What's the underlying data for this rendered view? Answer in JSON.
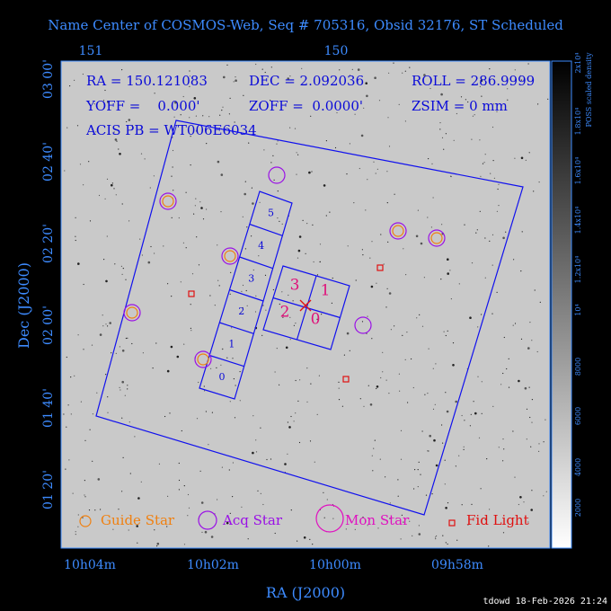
{
  "title": "Name Center of COSMOS-Web, Seq # 705316, Obsid 32176, ST Scheduled",
  "axes": {
    "top_ticks": [
      "151",
      "150"
    ],
    "left_ticks": [
      "03 00'",
      "02 40'",
      "02 20'",
      "02 00'",
      "01 40'",
      "01 20'"
    ],
    "bottom_ticks": [
      "10h04m",
      "10h02m",
      "10h00m",
      "09h58m"
    ],
    "x_label": "RA (J2000)",
    "y_label": "Dec (J2000)"
  },
  "info": [
    "RA = 150.121083",
    "DEC = 2.092036",
    "ROLL = 286.9999",
    "YOFF =    0.000'",
    "ZOFF =  0.0000'",
    "ZSIM = 0 mm",
    "ACIS PB = WT006E6034"
  ],
  "acis_s_chips": [
    "0",
    "1",
    "2",
    "3",
    "4",
    "5"
  ],
  "acis_i_chips": [
    "3",
    "1",
    "2",
    "0"
  ],
  "legend": [
    "Guide Star",
    "Acq Star",
    "Mon Star",
    "Fid Light"
  ],
  "colorbar": {
    "label": "POSS scaled density",
    "ticks": [
      "2000",
      "4000",
      "6000",
      "8000",
      "10⁴",
      "1.2x10⁴",
      "1.4x10⁴",
      "1.6x10⁴",
      "1.8x10⁴",
      "2x10⁴"
    ]
  },
  "footer": "tdowd 18-Feb-2026 21:24"
}
